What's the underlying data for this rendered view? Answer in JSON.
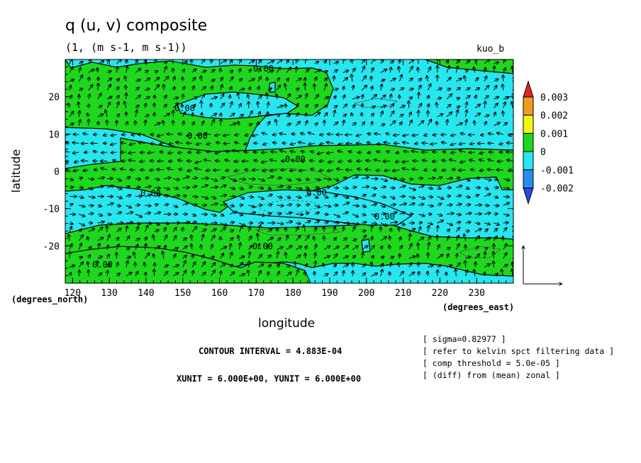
{
  "chart_data": {
    "type": "heatmap",
    "title": "q (u, v) composite",
    "subtitle": "(1, (m s-1, m s-1))",
    "tag": "kuo_b",
    "xlabel": "longitude",
    "ylabel": "latitude",
    "x_unit_label": "(degrees_east)",
    "y_unit_label": "(degrees_north)",
    "xlim": [
      118,
      240
    ],
    "ylim": [
      -30,
      30
    ],
    "x_ticks": [
      "120",
      "130",
      "140",
      "150",
      "160",
      "170",
      "180",
      "190",
      "200",
      "210",
      "220",
      "230"
    ],
    "y_ticks": [
      "20",
      "10",
      "0",
      "-10",
      "-20"
    ],
    "contour_labels": [
      "0.00"
    ],
    "contour_interval": "CONTOUR INTERVAL = 4.883E-04",
    "vector_units": "XUNIT = 6.000E+00, YUNIT = 6.000E+00",
    "notes": [
      "[ sigma=0.82977 ]",
      "[ refer to kelvin spct filtering data ]",
      "[ comp threshold = 5.0e-05 ]",
      "[ (diff) from (mean) zonal ]"
    ],
    "colorbar": {
      "ticks": [
        "0.003",
        "0.002",
        "0.001",
        "0",
        "-0.001",
        "-0.002"
      ],
      "colors": [
        "#e8231f",
        "#f29a1e",
        "#f5f511",
        "#1ed81e",
        "#27e6ef",
        "#2a8cf0",
        "#2a49ea"
      ]
    },
    "regions": [
      {
        "name": "positive",
        "value": "0 to 0.001",
        "color": "#1ed81e"
      },
      {
        "name": "negative",
        "value": "-0.001 to 0",
        "color": "#27e6ef"
      }
    ]
  }
}
